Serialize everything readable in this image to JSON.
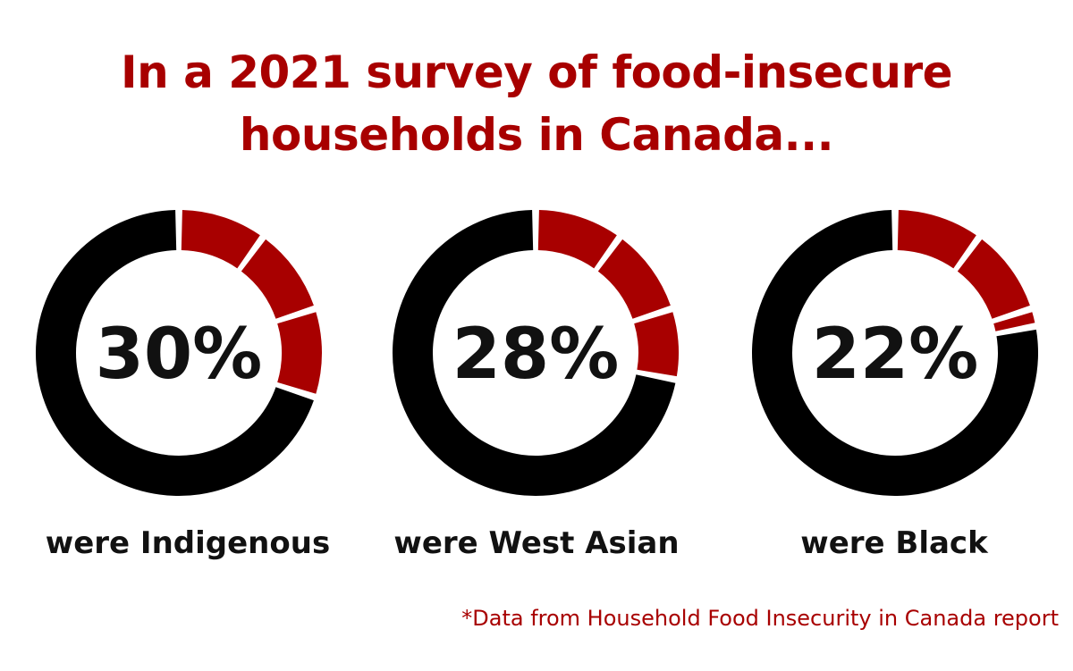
{
  "title": {
    "line1": "In a 2021 survey of food-insecure",
    "line2": "households in Canada..."
  },
  "chart_data": [
    {
      "type": "pie",
      "value": 30,
      "label": "30%",
      "caption": "were Indigenous"
    },
    {
      "type": "pie",
      "value": 28,
      "label": "28%",
      "caption": "were West Asian"
    },
    {
      "type": "pie",
      "value": 22,
      "label": "22%",
      "caption": "were Black"
    }
  ],
  "footnote": "*Data from Household Food Insecurity in Canada report",
  "colors": {
    "accent": "#a80000",
    "remainder": "#000000",
    "title": "#a80000"
  }
}
